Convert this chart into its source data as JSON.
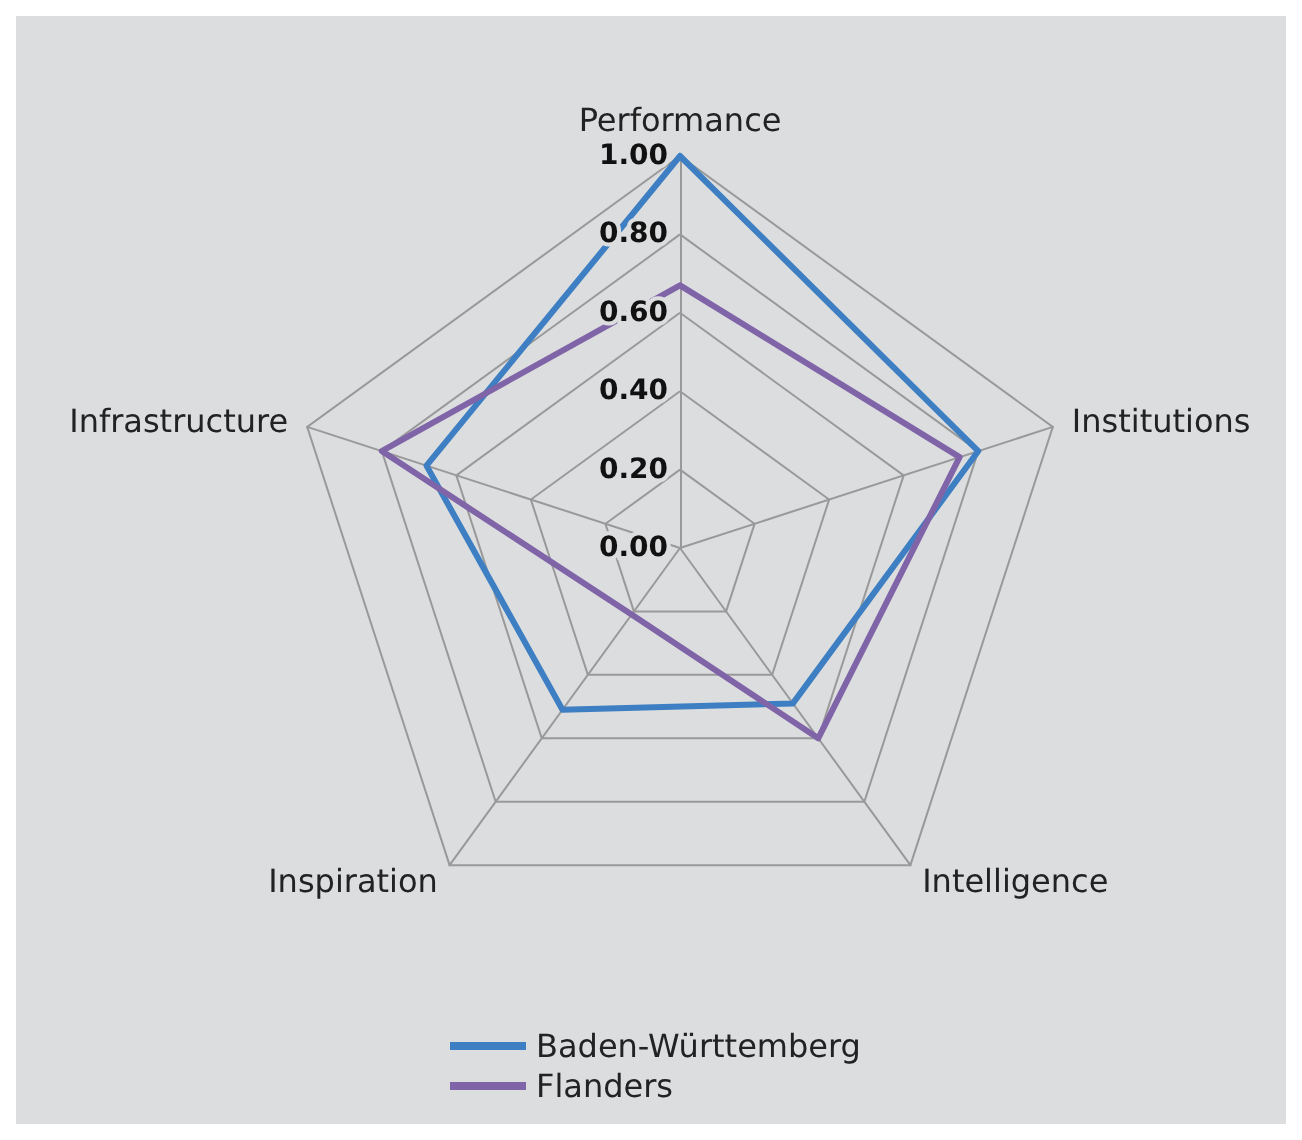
{
  "chart_data": {
    "type": "radar",
    "categories": [
      "Performance",
      "Institutions",
      "Intelligence",
      "Inspiration",
      "Infrastructure"
    ],
    "series": [
      {
        "name": "Baden-Württemberg",
        "color": "#3d7fc2",
        "values": [
          1.0,
          0.8,
          0.49,
          0.51,
          0.68
        ]
      },
      {
        "name": "Flanders",
        "color": "#8064a8",
        "values": [
          0.67,
          0.75,
          0.6,
          0.21,
          0.8
        ]
      }
    ],
    "ylim": [
      0,
      1
    ],
    "yticks": [
      {
        "value": 0,
        "label": "0.00"
      },
      {
        "value": 0.2,
        "label": "0.20"
      },
      {
        "value": 0.4,
        "label": "0.40"
      },
      {
        "value": 0.6,
        "label": "0.60"
      },
      {
        "value": 0.8,
        "label": "0.80"
      },
      {
        "value": 1,
        "label": "1.00"
      }
    ],
    "grid": true,
    "legend": "bottom",
    "marker": "none",
    "line_style": "solid"
  }
}
